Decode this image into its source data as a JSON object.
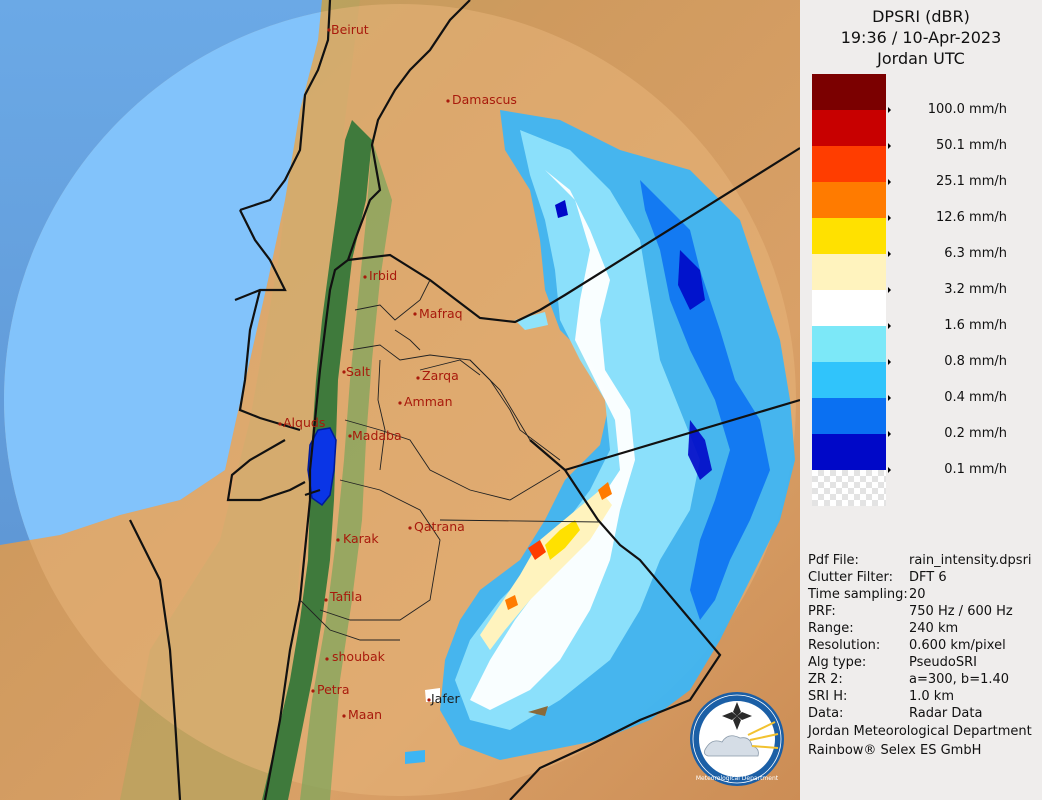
{
  "header": {
    "product": "DPSRI (dBR)",
    "datetime": "19:36 / 10-Apr-2023",
    "timezone": "Jordan UTC"
  },
  "legend": {
    "levels": [
      {
        "label": "",
        "color": "#7b0000"
      },
      {
        "label": "100.0 mm/h",
        "color": "#c80000"
      },
      {
        "label": "50.1 mm/h",
        "color": "#ff3d00"
      },
      {
        "label": "25.1 mm/h",
        "color": "#ff7b00"
      },
      {
        "label": "12.6 mm/h",
        "color": "#ffe100"
      },
      {
        "label": "6.3 mm/h",
        "color": "#fff3be"
      },
      {
        "label": "3.2 mm/h",
        "color": "#ffffff"
      },
      {
        "label": "1.6 mm/h",
        "color": "#7ce8f8"
      },
      {
        "label": "0.8 mm/h",
        "color": "#30c4fb"
      },
      {
        "label": "0.4 mm/h",
        "color": "#0a70f2"
      },
      {
        "label": "0.2 mm/h",
        "color": "#0008c8"
      },
      {
        "label": "0.1 mm/h",
        "color": "transparent"
      }
    ]
  },
  "info": [
    {
      "key": "Pdf File:",
      "value": "rain_intensity.dpsri"
    },
    {
      "key": "Clutter Filter:",
      "value": "DFT 6"
    },
    {
      "key": "Time sampling:",
      "value": "20"
    },
    {
      "key": "PRF:",
      "value": "750 Hz / 600 Hz"
    },
    {
      "key": "Range:",
      "value": "240 km"
    },
    {
      "key": "Resolution:",
      "value": "0.600 km/pixel"
    },
    {
      "key": "Alg type:",
      "value": "PseudoSRI"
    },
    {
      "key": "ZR 2:",
      "value": "a=300, b=1.40"
    },
    {
      "key": "SRI H:",
      "value": "1.0 km"
    },
    {
      "key": "Data:",
      "value": "Radar Data"
    }
  ],
  "credits": {
    "department": "Jordan Meteorological Department",
    "software": "Rainbow® Selex ES GmbH"
  },
  "map": {
    "cities": [
      "Beirut",
      "Damascus",
      "Irbid",
      "Mafraq",
      "Salt",
      "Zarqa",
      "Amman",
      "Alquds",
      "Madaba",
      "Qatrana",
      "Karak",
      "Tafila",
      "shoubak",
      "Petra",
      "Jafer",
      "Maan"
    ]
  },
  "logo": {
    "caption": "Meteorological Department"
  },
  "colors": {
    "sea": "#7fbff8",
    "land_desert": "#d49a5e",
    "valley_green": "#4f8a45",
    "radar_range_tint": "#e3b07a",
    "city_label": "#a81a0c",
    "panel_bg": "#efedec"
  }
}
